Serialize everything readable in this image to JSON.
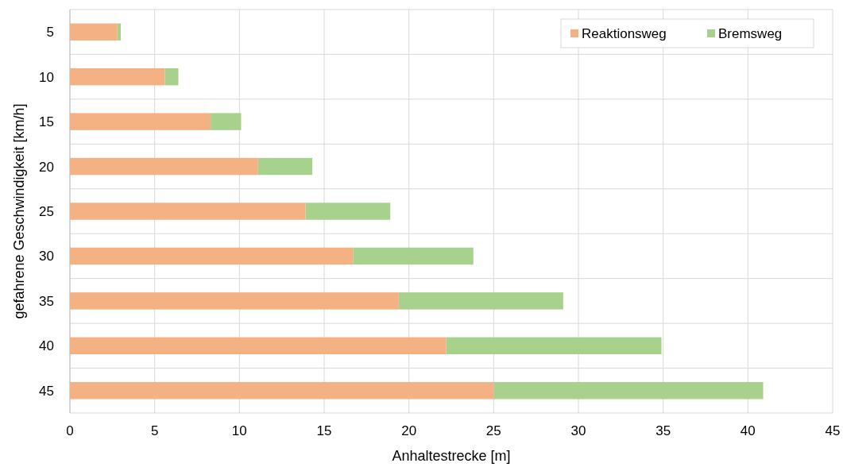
{
  "chart_data": {
    "type": "bar",
    "orientation": "horizontal",
    "stacked": true,
    "xlabel": "Anhaltestrecke [m]",
    "ylabel": "gefahrene Geschwindigkeit [km/h]",
    "categories": [
      "5",
      "10",
      "15",
      "20",
      "25",
      "30",
      "35",
      "40",
      "45"
    ],
    "series": [
      {
        "name": "Reaktionsweg",
        "color": "#f4b183",
        "values": [
          2.8,
          5.6,
          8.3,
          11.1,
          13.9,
          16.7,
          19.4,
          22.2,
          25
        ]
      },
      {
        "name": "Bremsweg",
        "color": "#a9d18e",
        "values": [
          0.2,
          0.8,
          1.8,
          3.2,
          5.0,
          7.1,
          9.7,
          12.7,
          15.9
        ]
      }
    ],
    "xlim": [
      0,
      45
    ],
    "xticks": [
      0,
      5,
      10,
      15,
      20,
      25,
      30,
      35,
      40,
      45
    ],
    "grid": true,
    "legend": "top right"
  }
}
